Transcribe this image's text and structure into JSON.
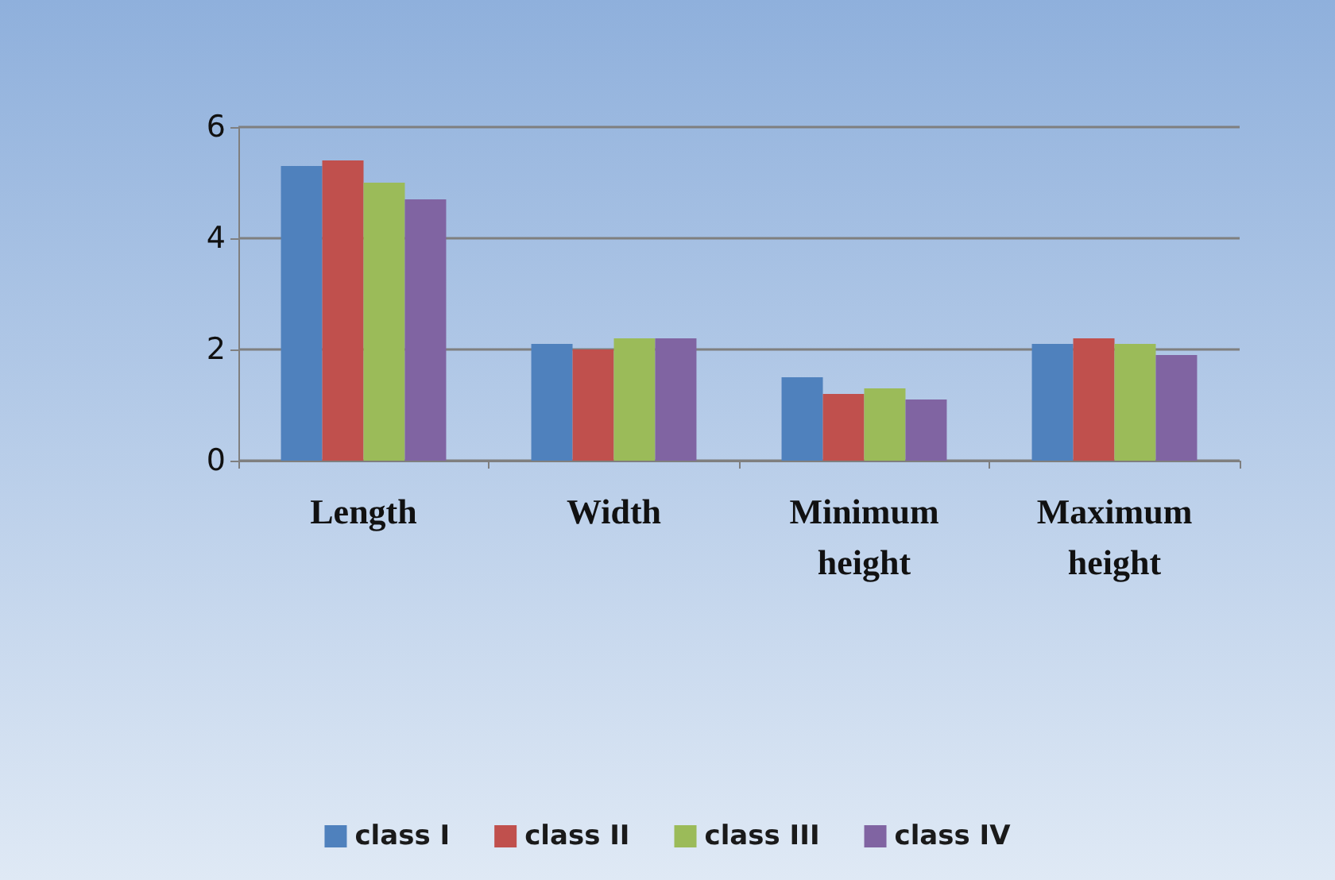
{
  "chart_data": {
    "type": "bar",
    "categories": [
      "Length",
      "Width",
      "Minimum\nheight",
      "Maximum\nheight"
    ],
    "series": [
      {
        "name": "class I",
        "color": "#4f81bd",
        "values": [
          5.3,
          2.1,
          1.5,
          2.1
        ]
      },
      {
        "name": "class II",
        "color": "#c0504d",
        "values": [
          5.4,
          2.0,
          1.2,
          2.2
        ]
      },
      {
        "name": "class III",
        "color": "#9bbb59",
        "values": [
          5.0,
          2.2,
          1.3,
          2.1
        ]
      },
      {
        "name": "class IV",
        "color": "#8064a2",
        "values": [
          4.7,
          2.2,
          1.1,
          1.9
        ]
      }
    ],
    "ylim": [
      0,
      6
    ],
    "yticks": [
      0,
      2,
      4,
      6
    ],
    "grid": "y",
    "legend": "bottom"
  }
}
